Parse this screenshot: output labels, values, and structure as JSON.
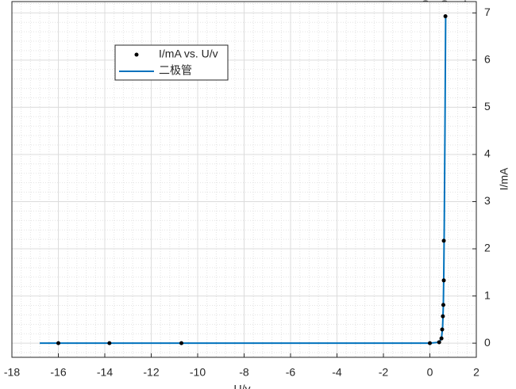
{
  "chart_data": {
    "type": "scatter-line",
    "x_label": "U/v",
    "y_label": "I/mA",
    "xlim": [
      -18,
      2
    ],
    "ylim": [
      -0.3,
      7.24
    ],
    "xticks": [
      -18,
      -16,
      -14,
      -12,
      -10,
      -8,
      -6,
      -4,
      -2,
      0,
      2
    ],
    "yticks": [
      0,
      1,
      2,
      3,
      4,
      5,
      6,
      7
    ],
    "grid": true,
    "minor_grid": true,
    "y_axis_side": "right",
    "legend": "upper left",
    "series": [
      {
        "name": "I/mA vs. U/v",
        "color": "#000000",
        "mode": "markers",
        "x": [
          -16,
          -13.8,
          -10.7,
          0,
          0.4,
          0.5,
          0.53,
          0.56,
          0.58,
          0.6,
          0.6,
          0.67
        ],
        "values": [
          0,
          0,
          0,
          0,
          0.02,
          0.1,
          0.29,
          0.57,
          0.81,
          1.33,
          2.17,
          6.93
        ]
      },
      {
        "name": "二极管",
        "color": "#0072bd",
        "mode": "line",
        "x": [
          -16.8,
          -10,
          -2,
          0,
          0.4,
          0.5,
          0.55,
          0.58,
          0.6,
          0.62,
          0.65,
          0.68
        ],
        "values": [
          0,
          0,
          0,
          0,
          0.02,
          0.1,
          0.35,
          0.8,
          1.5,
          2.5,
          4.5,
          6.93
        ]
      }
    ]
  }
}
